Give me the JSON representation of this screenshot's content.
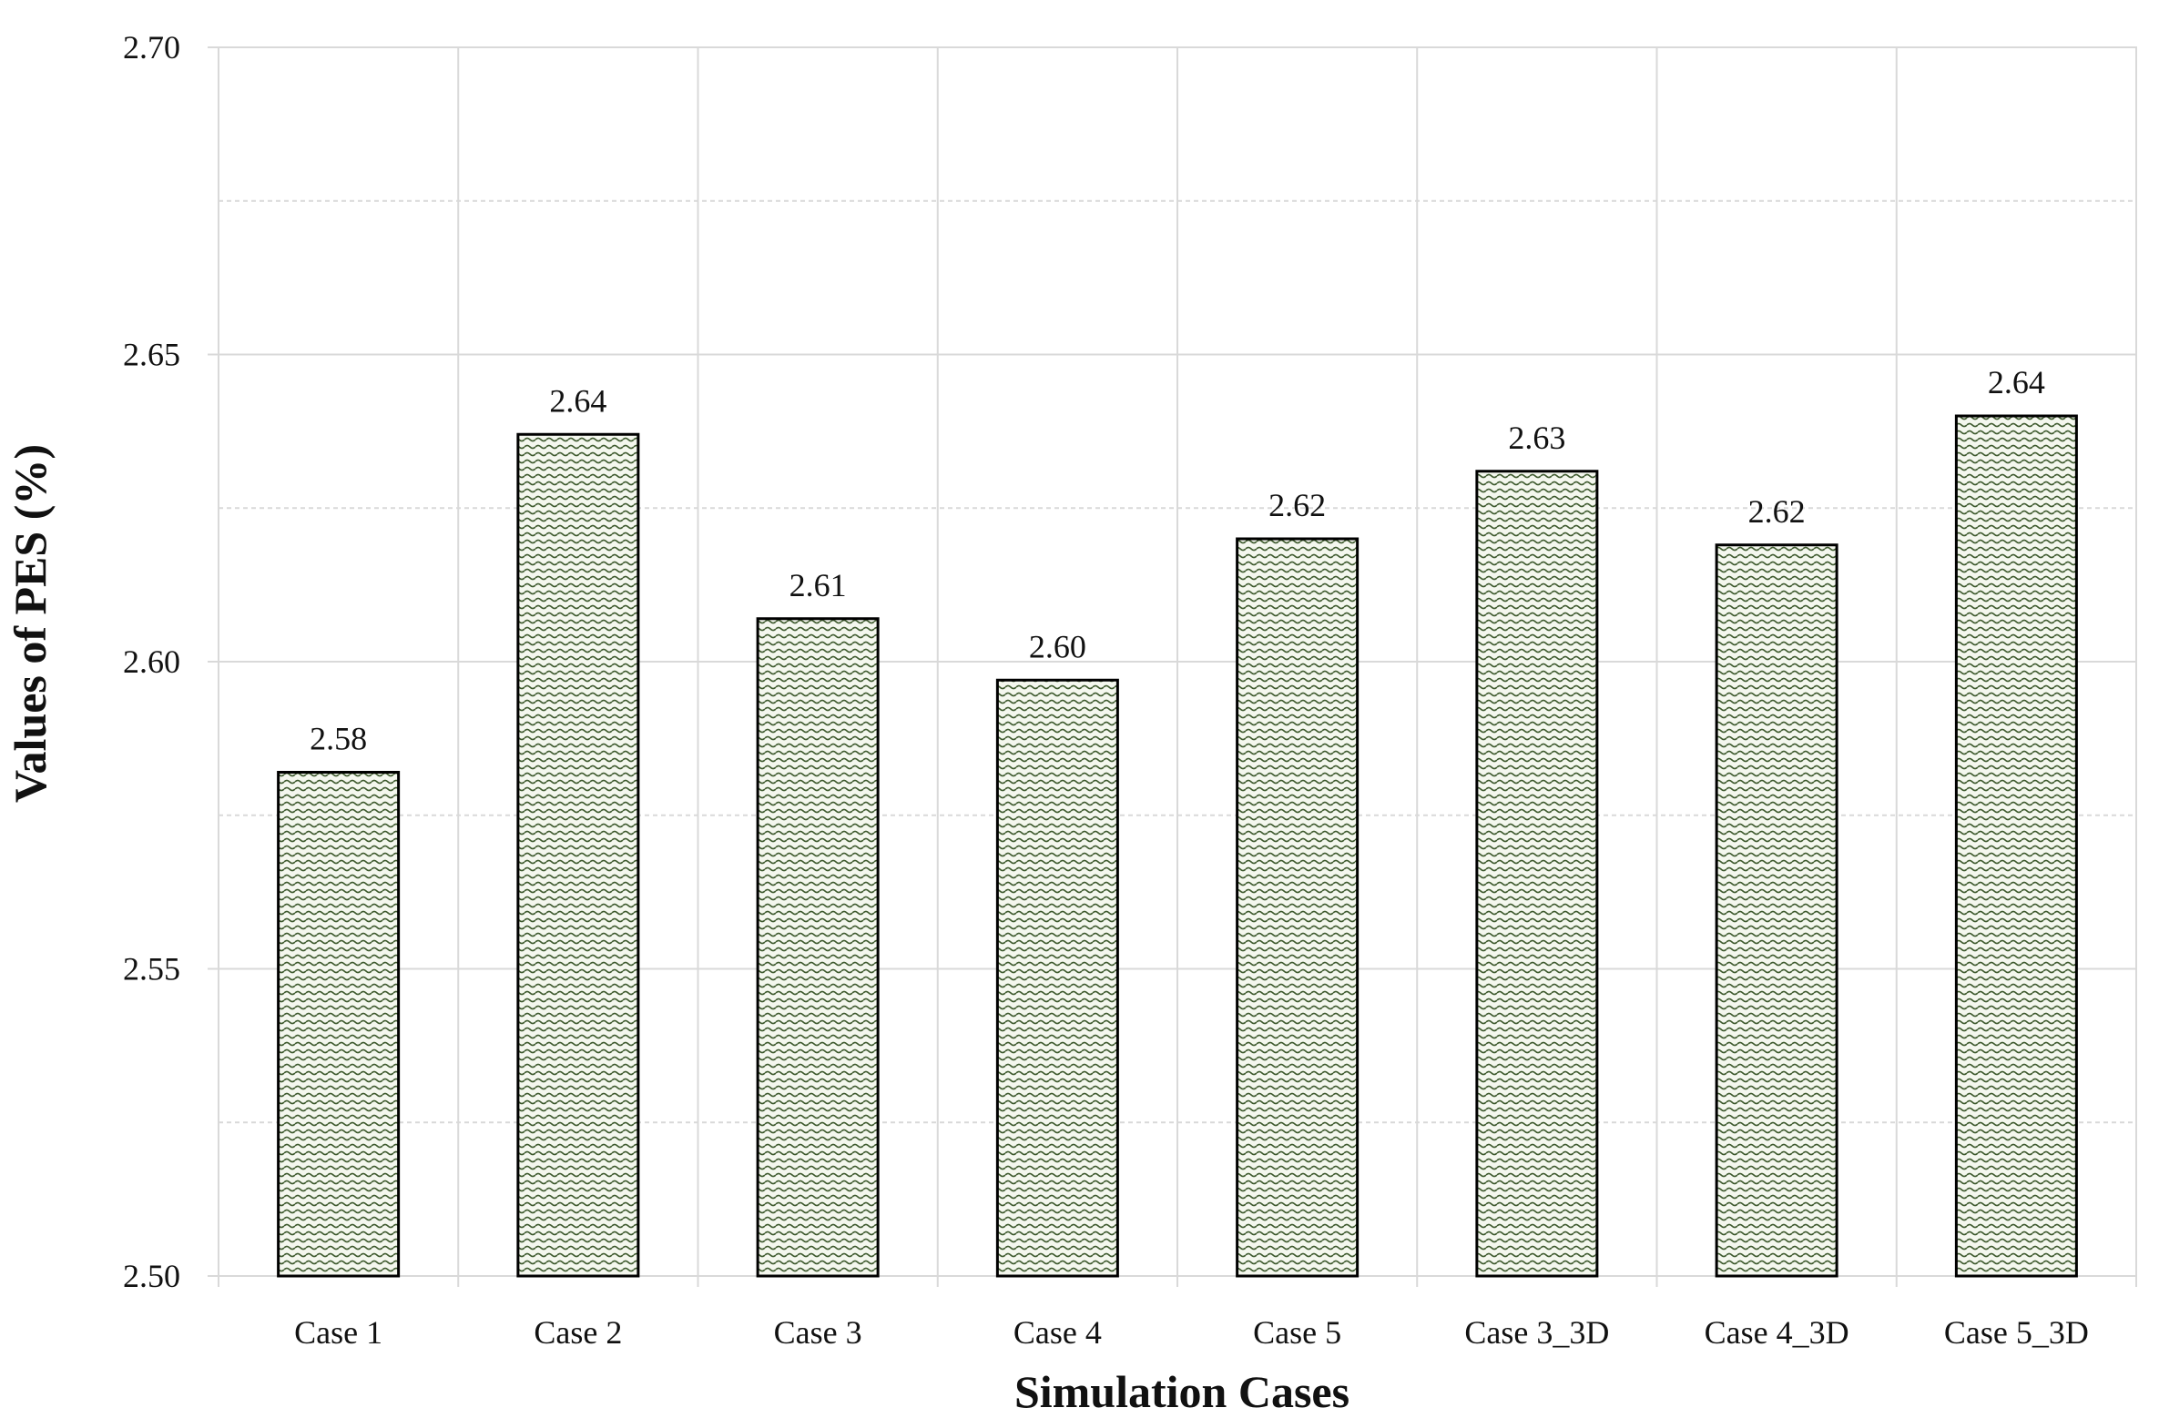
{
  "chart_data": {
    "type": "bar",
    "title": "",
    "xlabel": "Simulation  Cases",
    "ylabel": "Values of PES (%)",
    "categories": [
      "Case 1",
      "Case 2",
      "Case 3",
      "Case 4",
      "Case 5",
      "Case 3_3D",
      "Case 4_3D",
      "Case 5_3D"
    ],
    "values": [
      2.582,
      2.637,
      2.607,
      2.597,
      2.62,
      2.631,
      2.619,
      2.64
    ],
    "data_labels": [
      "2.58",
      "2.64",
      "2.61",
      "2.60",
      "2.62",
      "2.63",
      "2.62",
      "2.64"
    ],
    "ylim": [
      2.5,
      2.7
    ],
    "yticks": [
      "2.50",
      "2.55",
      "2.60",
      "2.65",
      "2.70"
    ],
    "ytick_values": [
      2.5,
      2.55,
      2.6,
      2.65,
      2.7
    ],
    "minor_grid_values": [
      2.525,
      2.575,
      2.625,
      2.675
    ],
    "grid": true,
    "bar_pattern": "wavy-hatch",
    "colors": {
      "bar_fill": "#f4f7ee",
      "bar_hatch": "#3e5a2e",
      "bar_edge": "#000000",
      "grid": "#d9d9d9"
    }
  }
}
